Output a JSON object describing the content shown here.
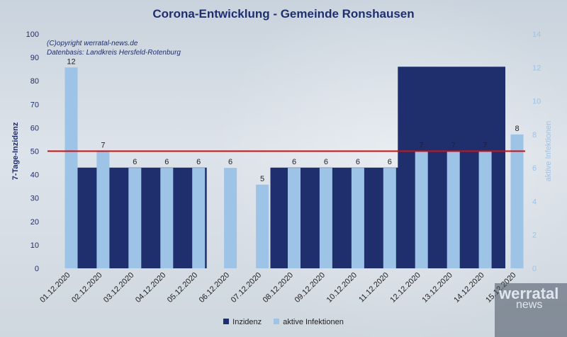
{
  "title": "Corona-Entwicklung - Gemeinde Ronshausen",
  "notes": [
    "(C)opyright werratal-news.de",
    "Datenbasis: Landkreis Hersfeld-Rotenburg"
  ],
  "logo": {
    "line1": "werratal",
    "line2": "news"
  },
  "colors": {
    "incidence": "#1f2f6e",
    "infections": "#9dc3e6",
    "threshold": "#d01010",
    "title": "#1f2f6e"
  },
  "chart_data": {
    "type": "area",
    "title": "Corona-Entwicklung - Gemeinde Ronshausen",
    "categories": [
      "01.12.2020",
      "02.12.2020",
      "03.12.2020",
      "04.12.2020",
      "05.12.2020",
      "06.12.2020",
      "07.12.2020",
      "08.12.2020",
      "09.12.2020",
      "10.12.2020",
      "11.12.2020",
      "12.12.2020",
      "13.12.2020",
      "14.12.2020",
      "15.12.2020"
    ],
    "series": [
      {
        "name": "Inzidenz",
        "type": "area",
        "axis": "left",
        "values": [
          43,
          43,
          43,
          43,
          43,
          0,
          0,
          43,
          43,
          43,
          43,
          86,
          86,
          86,
          86
        ]
      },
      {
        "name": "aktive Infektionen",
        "type": "bar",
        "axis": "right",
        "values": [
          12,
          7,
          6,
          6,
          6,
          6,
          5,
          6,
          6,
          6,
          6,
          7,
          7,
          7,
          8
        ]
      }
    ],
    "threshold": 50,
    "ylabel": "7-Tage-Inzidenz",
    "y2label": "aktive Infektionen",
    "ylim": [
      0,
      100
    ],
    "y2lim": [
      0,
      14
    ],
    "yticks": [
      0,
      10,
      20,
      30,
      40,
      50,
      60,
      70,
      80,
      90,
      100
    ],
    "y2ticks": [
      0,
      2,
      4,
      6,
      8,
      10,
      12,
      14
    ],
    "legend": "bottom",
    "grid": false
  }
}
